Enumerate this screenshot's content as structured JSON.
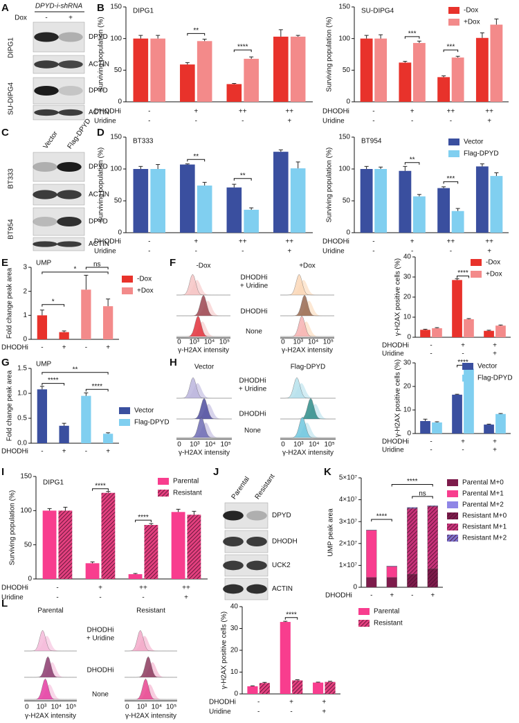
{
  "panel_labels": [
    "A",
    "B",
    "C",
    "D",
    "E",
    "F",
    "G",
    "H",
    "I",
    "J",
    "K",
    "L"
  ],
  "blots": [
    {
      "header": "DPYD-i-shRNA",
      "treatment": "Dox",
      "lanes": [
        "-",
        "+"
      ],
      "groups": [
        {
          "name": "DIPG1",
          "bands": [
            "DPYD",
            "ACTIN"
          ]
        },
        {
          "name": "SU-DIPG4",
          "bands": [
            "DPYD",
            "ACTIN"
          ]
        }
      ]
    },
    {
      "lanes": [
        "Vector",
        "Flag-DPYD"
      ],
      "groups": [
        {
          "name": "BT333",
          "bands": [
            "DPYD",
            "ACTIN"
          ]
        },
        {
          "name": "BT954",
          "bands": [
            "DPYD",
            "ACTIN"
          ]
        }
      ]
    },
    {
      "lanes": [
        "Parental",
        "Resistant"
      ],
      "groups": [
        {
          "bands": [
            "DPYD",
            "DHODH",
            "UCK2",
            "ACTIN"
          ]
        }
      ]
    }
  ],
  "histograms": [
    {
      "columns": [
        "-Dox",
        "+Dox"
      ],
      "rows": [
        [
          "DHODHi",
          "+ Uridine"
        ],
        [
          "DHODHi"
        ],
        [
          "None"
        ]
      ],
      "xlabel": "γ-H2AX intensity",
      "xticks": [
        "0",
        "10³",
        "10⁴",
        "10⁵"
      ]
    },
    {
      "columns": [
        "Vector",
        "Flag-DPYD"
      ],
      "rows": [
        [
          "DHODHi",
          "+ Uridine"
        ],
        [
          "DHODHi"
        ],
        [
          "None"
        ]
      ],
      "xlabel": "γ-H2AX intensity",
      "xticks": [
        "0",
        "10³",
        "10⁴",
        "10⁵"
      ]
    },
    {
      "columns": [
        "Parental",
        "Resistant"
      ],
      "rows": [
        [
          "DHODHi",
          "+ Uridine"
        ],
        [
          "DHODHi"
        ],
        [
          "None"
        ]
      ],
      "xlabel": "γ-H2AX intensity",
      "xticks": [
        "0",
        "10³",
        "10⁴",
        "10⁵"
      ]
    }
  ],
  "chart_data": [
    {
      "type": "bar",
      "title": "DIPG1",
      "ylabel": "Surviving population (%)",
      "ylim": [
        0,
        150
      ],
      "yticks": [
        0,
        50,
        100,
        150
      ],
      "series": [
        {
          "color": "#e8322b",
          "values": [
            100,
            59,
            28,
            103
          ],
          "errors": [
            5,
            3,
            1,
            11
          ]
        },
        {
          "color": "#f38a8a",
          "values": [
            100,
            96,
            68,
            103
          ],
          "errors": [
            5,
            3,
            3,
            2
          ]
        }
      ],
      "conditions": [
        {
          "name": "DHODHi",
          "values": [
            "-",
            "+",
            "++",
            "++"
          ]
        },
        {
          "name": "Uridine",
          "values": [
            "-",
            "-",
            "-",
            "+"
          ]
        }
      ],
      "annotations": [
        "**",
        "****"
      ],
      "legend": false
    },
    {
      "type": "bar",
      "title": "SU-DIPG4",
      "ylabel": "Surviving population (%)",
      "ylim": [
        0,
        150
      ],
      "yticks": [
        0,
        50,
        100,
        150
      ],
      "series": [
        {
          "name": "-Dox",
          "color": "#e8322b",
          "values": [
            100,
            62,
            39,
            101
          ],
          "errors": [
            5,
            2,
            2,
            8
          ]
        },
        {
          "name": "+Dox",
          "color": "#f38a8a",
          "values": [
            100,
            93,
            70,
            122
          ],
          "errors": [
            6,
            3,
            2,
            9
          ]
        }
      ],
      "conditions": [
        {
          "name": "DHODHi",
          "values": [
            "-",
            "+",
            "++",
            "++"
          ]
        },
        {
          "name": "Uridine",
          "values": [
            "-",
            "-",
            "-",
            "+"
          ]
        }
      ],
      "annotations": [
        "***",
        "***"
      ],
      "legend": true
    },
    {
      "type": "bar",
      "title": "BT333",
      "ylabel": "Surviving population (%)",
      "ylim": [
        0,
        150
      ],
      "yticks": [
        0,
        50,
        100,
        150
      ],
      "series": [
        {
          "color": "#3a4f9f",
          "values": [
            100,
            107,
            71,
            127
          ],
          "errors": [
            4,
            1,
            5,
            3
          ]
        },
        {
          "color": "#80cff0",
          "values": [
            100,
            74,
            36,
            101
          ],
          "errors": [
            7,
            5,
            3,
            10
          ]
        }
      ],
      "conditions": [
        {
          "name": "DHODHi",
          "values": [
            "-",
            "+",
            "++",
            "++"
          ]
        },
        {
          "name": "Uridine",
          "values": [
            "-",
            "-",
            "-",
            "+"
          ]
        }
      ],
      "annotations": [
        "**",
        "**"
      ],
      "legend": false
    },
    {
      "type": "bar",
      "title": "BT954",
      "ylabel": "Surviving population (%)",
      "ylim": [
        0,
        150
      ],
      "yticks": [
        0,
        50,
        100,
        150
      ],
      "series": [
        {
          "name": "Vector",
          "color": "#3a4f9f",
          "values": [
            100,
            97,
            70,
            104
          ],
          "errors": [
            4,
            7,
            2,
            4
          ]
        },
        {
          "name": "Flag-DPYD",
          "color": "#80cff0",
          "values": [
            100,
            57,
            34,
            89
          ],
          "errors": [
            3,
            3,
            4,
            5
          ]
        }
      ],
      "conditions": [
        {
          "name": "DHODHi",
          "values": [
            "-",
            "+",
            "++",
            "++"
          ]
        },
        {
          "name": "Uridine",
          "values": [
            "-",
            "-",
            "-",
            "+"
          ]
        }
      ],
      "annotations": [
        "**",
        "***"
      ],
      "legend": true
    },
    {
      "type": "bar",
      "title": "UMP",
      "ylabel": "Fold change peak area",
      "ylim": [
        0,
        3
      ],
      "yticks": [
        0,
        1,
        2,
        3
      ],
      "series": [
        {
          "name": "-Dox",
          "color": "#e8322b",
          "values": [
            1.0,
            0.3,
            null,
            null
          ],
          "errors": [
            0.22,
            0.05,
            null,
            null
          ]
        },
        {
          "name": "+Dox",
          "color": "#f38a8a",
          "values": [
            null,
            null,
            2.07,
            1.38
          ],
          "errors": [
            null,
            null,
            0.6,
            0.3
          ]
        }
      ],
      "conditions": [
        {
          "name": "DHODHi",
          "values": [
            "-",
            "+",
            "-",
            "+"
          ]
        }
      ],
      "annotations": [
        "*",
        "*",
        "ns"
      ],
      "legend": true
    },
    {
      "type": "bar",
      "ylabel": "γ-H2AX positive cells (%)",
      "ylim": [
        0,
        40
      ],
      "yticks": [
        0,
        10,
        20,
        30,
        40
      ],
      "series": [
        {
          "name": "-Dox",
          "color": "#e8322b",
          "values": [
            3.7,
            28.5,
            3.2
          ],
          "errors": [
            0.3,
            0.6,
            0.3
          ]
        },
        {
          "name": "+Dox",
          "color": "#f38a8a",
          "values": [
            4.5,
            9.0,
            5.8
          ],
          "errors": [
            0.3,
            0.3,
            0.3
          ]
        }
      ],
      "conditions": [
        {
          "name": "DHODHi",
          "values": [
            "-",
            "+",
            "+"
          ]
        },
        {
          "name": "Uridine",
          "values": [
            "-",
            "-",
            "+"
          ]
        }
      ],
      "annotations": [
        "****"
      ],
      "legend": true
    },
    {
      "type": "bar",
      "title": "UMP",
      "ylabel": "Fold change peak area",
      "ylim": [
        0,
        1.5
      ],
      "yticks": [
        {
          "value": 0,
          "label": "0.0"
        },
        {
          "value": 0.5,
          "label": "0.5"
        },
        {
          "value": 1,
          "label": "1.0"
        },
        {
          "value": 1.5,
          "label": "1.5"
        }
      ],
      "series": [
        {
          "name": "Vector",
          "color": "#3a4f9f",
          "values": [
            1.08,
            0.35,
            null,
            null
          ],
          "errors": [
            0.06,
            0.05,
            null,
            null
          ]
        },
        {
          "name": "Flag-DPYD",
          "color": "#80cff0",
          "values": [
            null,
            null,
            0.95,
            0.19
          ],
          "errors": [
            null,
            null,
            0.06,
            0.02
          ]
        }
      ],
      "conditions": [
        {
          "name": "DHODHi",
          "values": [
            "-",
            "+",
            "-",
            "+"
          ]
        }
      ],
      "annotations": [
        "****",
        "**",
        "****"
      ],
      "legend": true
    },
    {
      "type": "bar",
      "ylabel": "γ-H2AX positive cells (%)",
      "ylim": [
        0,
        30
      ],
      "yticks": [
        0,
        10,
        20,
        30
      ],
      "series": [
        {
          "name": "Vector",
          "color": "#3a4f9f",
          "values": [
            5.3,
            16.5,
            3.8
          ],
          "errors": [
            0.8,
            0.2,
            0.2
          ]
        },
        {
          "name": "Flag-DPYD",
          "color": "#80cff0",
          "values": [
            4.7,
            27.5,
            8.3
          ],
          "errors": [
            0.3,
            0.4,
            0.2
          ]
        }
      ],
      "conditions": [
        {
          "name": "DHODHi",
          "values": [
            "-",
            "+",
            "+"
          ]
        },
        {
          "name": "Uridine",
          "values": [
            "-",
            "-",
            "+"
          ]
        }
      ],
      "annotations": [
        "****"
      ],
      "legend": true
    },
    {
      "type": "bar",
      "title": "DIPG1",
      "ylabel": "Surviving population (%)",
      "ylim": [
        0,
        150
      ],
      "yticks": [
        0,
        50,
        100,
        150
      ],
      "series": [
        {
          "name": "Parental",
          "color": "#f83d8e",
          "values": [
            100,
            23,
            7,
            98
          ],
          "errors": [
            3,
            2,
            1,
            4
          ]
        },
        {
          "name": "Resistant",
          "color": "#e4407f",
          "hatch": true,
          "values": [
            100,
            126,
            79,
            94
          ],
          "errors": [
            5,
            2,
            2,
            5
          ]
        }
      ],
      "conditions": [
        {
          "name": "DHODHi",
          "values": [
            "-",
            "+",
            "++",
            "++"
          ]
        },
        {
          "name": "Uridine",
          "values": [
            "-",
            "-",
            "-",
            "+"
          ]
        }
      ],
      "annotations": [
        "****",
        "****"
      ],
      "legend": true
    },
    {
      "type": "stacked_bar",
      "ylabel": "UMP peak area",
      "ylim": [
        0,
        50000000
      ],
      "yticks": [
        0,
        {
          "value": 10000000,
          "label": "1×10⁷"
        },
        {
          "value": 20000000,
          "label": "2×10⁷"
        },
        {
          "value": 30000000,
          "label": "3×10⁷"
        },
        {
          "value": 40000000,
          "label": "4×10⁷"
        },
        {
          "value": 50000000,
          "label": "5×10⁷"
        }
      ],
      "series": [
        {
          "name": "Parental M+0",
          "color": "#7d1b4b",
          "values": [
            4500000,
            4500000,
            null,
            null
          ]
        },
        {
          "name": "Parental M+1",
          "color": "#f83d8e",
          "values": [
            21500000,
            5000000,
            null,
            null
          ]
        },
        {
          "name": "Parental M+2",
          "color": "#8f86e6",
          "values": [
            200000,
            200000,
            null,
            null
          ]
        },
        {
          "name": "Resistant M+0",
          "color": "#7d1b4b",
          "hatch": true,
          "values": [
            null,
            null,
            6000000,
            8500000
          ]
        },
        {
          "name": "Resistant M+1",
          "color": "#c8337a",
          "hatch": true,
          "values": [
            null,
            null,
            30000000,
            28500000
          ]
        },
        {
          "name": "Resistant M+2",
          "color": "#7a72cc",
          "hatch": true,
          "values": [
            null,
            null,
            500000,
            300000
          ]
        }
      ],
      "conditions": [
        {
          "name": "DHODHi",
          "values": [
            "-",
            "+",
            "-",
            "+"
          ]
        }
      ],
      "annotations": [
        "****",
        "****",
        "ns"
      ],
      "legend": true
    },
    {
      "type": "bar",
      "ylabel": "γ-H2AX positive cells (%)",
      "ylim": [
        0,
        40
      ],
      "yticks": [
        0,
        10,
        20,
        30,
        40
      ],
      "series": [
        {
          "name": "Parental",
          "color": "#f83d8e",
          "values": [
            3.5,
            33,
            5.2
          ],
          "errors": [
            0.2,
            0.3,
            0.2
          ]
        },
        {
          "name": "Resistant",
          "color": "#e4407f",
          "hatch": true,
          "values": [
            5.0,
            6.2,
            5.5
          ],
          "errors": [
            0.3,
            0.3,
            0.3
          ]
        }
      ],
      "conditions": [
        {
          "name": "DHODHi",
          "values": [
            "-",
            "+",
            "+"
          ]
        },
        {
          "name": "Uridine",
          "values": [
            "-",
            "-",
            "+"
          ]
        }
      ],
      "annotations": [
        "****"
      ],
      "legend": true
    }
  ]
}
